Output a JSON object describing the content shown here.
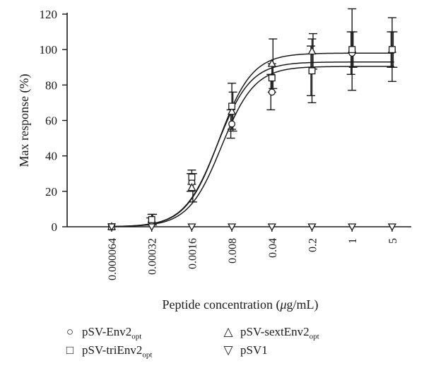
{
  "chart_data": {
    "type": "scatter",
    "xlabel_prefix": "Peptide concentration (",
    "xlabel_unit_italic": "μ",
    "xlabel_suffix": "g/mL)",
    "ylabel": "Max response (%)",
    "x_categories": [
      "0.000064",
      "0.00032",
      "0.0016",
      "0.008",
      "0.04",
      "0.2",
      "1",
      "5"
    ],
    "y_ticks": [
      0,
      20,
      40,
      60,
      80,
      100,
      120
    ],
    "ylim": [
      0,
      120
    ],
    "x_scale": "log",
    "grid": false,
    "legend_position": "bottom",
    "series": [
      {
        "name": "pSV-Env2opt",
        "name_base": "pSV-Env2",
        "name_sub": "opt",
        "marker": "circle",
        "values": [
          0,
          3,
          25,
          58,
          76,
          88,
          98,
          100
        ],
        "err": [
          0,
          2,
          5,
          8,
          10,
          14,
          12,
          10
        ],
        "fit_top": 90.5
      },
      {
        "name": "pSV-sextEnv2opt",
        "name_base": "pSV-sextEnv2",
        "name_sub": "opt",
        "marker": "triangle-up",
        "values": [
          0,
          4,
          22,
          65,
          92,
          99,
          100,
          100
        ],
        "err": [
          0,
          3,
          8,
          11,
          14,
          10,
          10,
          10
        ],
        "fit_top": 98
      },
      {
        "name": "pSV-triEnv2opt",
        "name_base": "pSV-triEnv2",
        "name_sub": "opt",
        "marker": "square",
        "values": [
          0,
          4,
          28,
          68,
          84,
          88,
          100,
          100
        ],
        "err": [
          0,
          3,
          4,
          13,
          8,
          18,
          23,
          18
        ],
        "fit_top": 93
      },
      {
        "name": "pSV1",
        "marker": "triangle-down",
        "values": [
          0,
          0,
          0,
          0,
          0,
          0,
          0,
          0
        ],
        "err": [
          0,
          0,
          0,
          0,
          0,
          0,
          0,
          0
        ]
      }
    ]
  },
  "legend": {
    "item1": {
      "base": "pSV-Env2",
      "sub": "opt",
      "symbol": "○"
    },
    "item2": {
      "base": "pSV-sextEnv2",
      "sub": "opt",
      "symbol": "△"
    },
    "item3": {
      "base": "pSV-triEnv2",
      "sub": "opt",
      "symbol": "□"
    },
    "item4": {
      "base": "pSV1",
      "sub": "",
      "symbol": "▽"
    }
  }
}
